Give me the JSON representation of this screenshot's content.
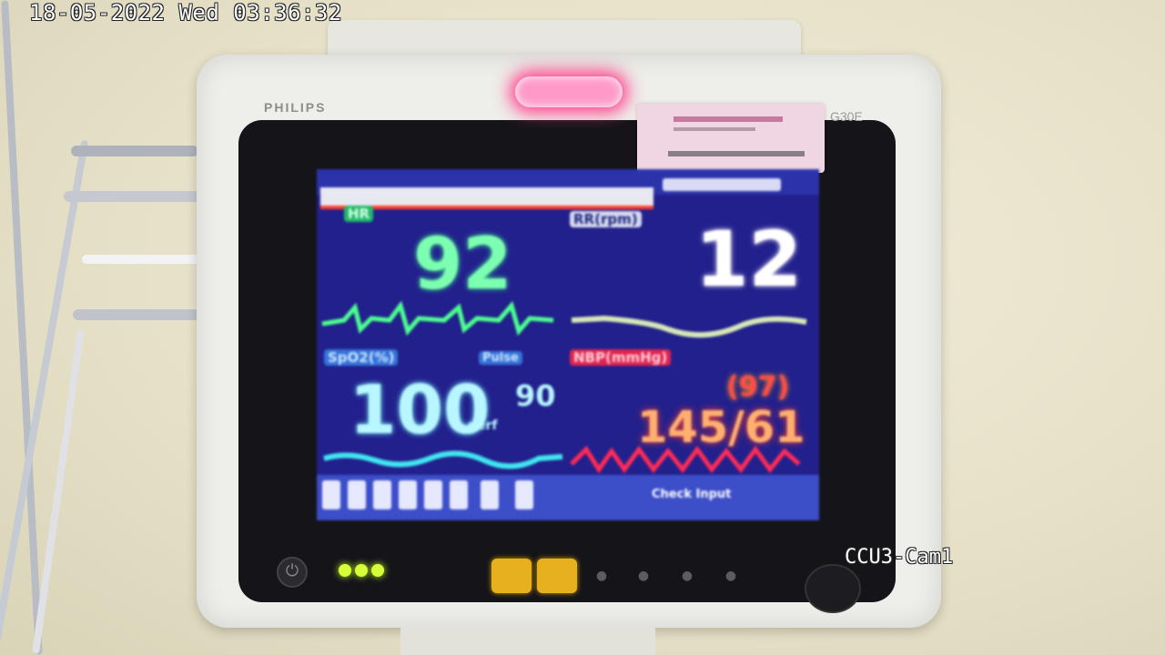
{
  "overlay": {
    "timestamp": "18-05-2022 Wed 03:36:32",
    "camera_label": "CCU3-Cam1"
  },
  "device": {
    "brand": "PHILIPS",
    "model": "G30E"
  },
  "monitor": {
    "hr_label": "HR",
    "hr_value": "92",
    "rr_label": "RR(rpm)",
    "rr_value": "12",
    "spo2_label": "SpO2(%)",
    "spo2_value": "100",
    "spo2_unit": "perf",
    "pulse_label": "Pulse",
    "pulse_value": "90",
    "nbp_label": "NBP(mmHg)",
    "nbp_map": "(97)",
    "nbp_value": "145/61",
    "mode_label": "Check Input"
  },
  "colors": {
    "hr": "#7cffb0",
    "rr": "#ffffff",
    "spo2": "#b8f7ff",
    "nbp": "#ffb070",
    "screen_bg": "#22208c",
    "alarm_light": "#ff3d8a"
  },
  "icons": [
    "power-icon",
    "alarm-silence-icon",
    "pause-icon",
    "settings-icon",
    "home-icon"
  ]
}
